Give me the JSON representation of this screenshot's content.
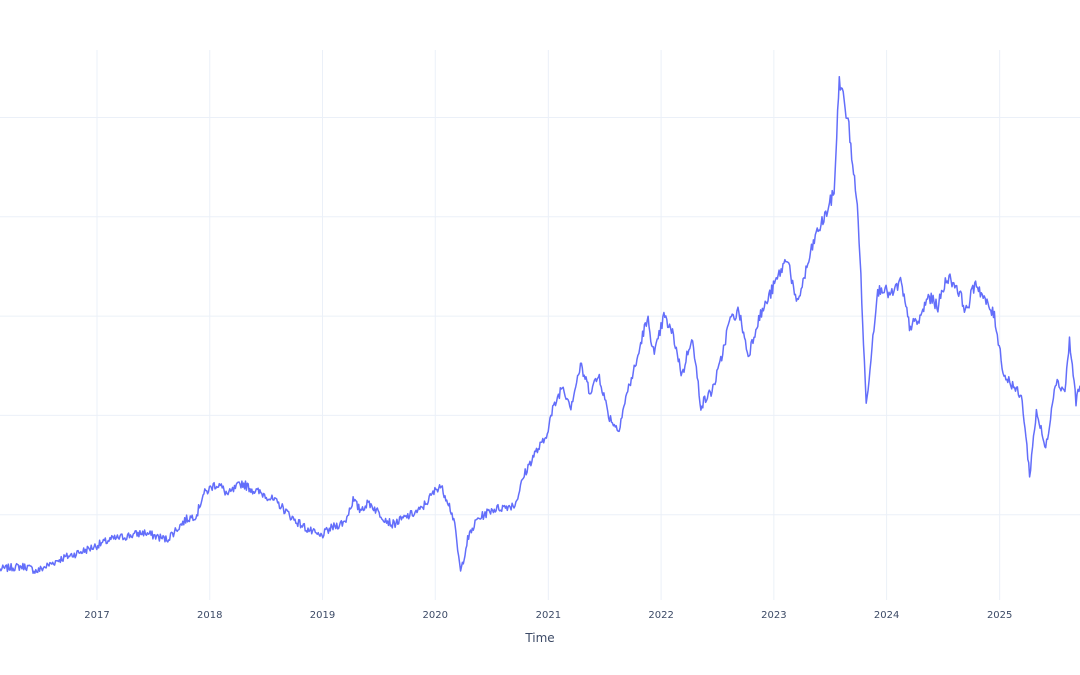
{
  "chart_data": {
    "type": "line",
    "xlabel": "Time",
    "ylabel": "",
    "title": "",
    "xlim": [
      "2016-02-22",
      "2025-09-18"
    ],
    "ylim": [
      0,
      6
    ],
    "x_ticks": [
      "2017",
      "2018",
      "2019",
      "2020",
      "2021",
      "2022",
      "2023",
      "2024",
      "2025"
    ],
    "x_tick_dates": [
      "2017-01-01",
      "2018-01-01",
      "2019-01-01",
      "2020-01-01",
      "2021-01-01",
      "2022-01-01",
      "2023-01-01",
      "2024-01-01",
      "2025-01-01"
    ],
    "y_gridlines": [
      1,
      2,
      3,
      4,
      5
    ],
    "grid": true,
    "legend": "none",
    "line_color": "#636efa",
    "series": [
      {
        "x": [
          "2016-02-22",
          "2016-04-01",
          "2016-05-15",
          "2016-06-20",
          "2016-09-01",
          "2016-12-01",
          "2017-02-15",
          "2017-04-01",
          "2017-06-01",
          "2017-08-15",
          "2017-10-15",
          "2017-11-20",
          "2017-12-10",
          "2018-01-15",
          "2018-02-01",
          "2018-03-01",
          "2018-04-15",
          "2018-05-20",
          "2018-06-30",
          "2018-08-15",
          "2018-10-01",
          "2018-11-15",
          "2018-12-24",
          "2019-02-01",
          "2019-03-15",
          "2019-04-10",
          "2019-05-01",
          "2019-06-01",
          "2019-07-15",
          "2019-08-15",
          "2019-10-01",
          "2019-11-15",
          "2020-01-15",
          "2020-02-10",
          "2020-03-01",
          "2020-03-23",
          "2020-04-15",
          "2020-05-15",
          "2020-07-01",
          "2020-08-15",
          "2020-09-15",
          "2020-10-15",
          "2020-11-15",
          "2020-12-20",
          "2021-01-15",
          "2021-02-15",
          "2021-03-15",
          "2021-04-15",
          "2021-05-15",
          "2021-06-15",
          "2021-07-15",
          "2021-08-15",
          "2021-09-15",
          "2021-10-15",
          "2021-11-05",
          "2021-11-20",
          "2021-12-10",
          "2022-01-10",
          "2022-02-10",
          "2022-03-10",
          "2022-04-10",
          "2022-05-10",
          "2022-06-15",
          "2022-07-10",
          "2022-08-10",
          "2022-09-10",
          "2022-10-10",
          "2022-11-10",
          "2022-12-10",
          "2023-01-15",
          "2023-02-15",
          "2023-03-15",
          "2023-04-15",
          "2023-05-15",
          "2023-06-15",
          "2023-07-15",
          "2023-08-01",
          "2023-09-01",
          "2023-10-01",
          "2023-10-27",
          "2023-11-30",
          "2023-12-15",
          "2024-01-15",
          "2024-02-15",
          "2024-03-15",
          "2024-04-15",
          "2024-05-15",
          "2024-06-15",
          "2024-07-15",
          "2024-08-15",
          "2024-09-15",
          "2024-10-15",
          "2024-11-15",
          "2024-12-15",
          "2025-01-15",
          "2025-02-15",
          "2025-03-15",
          "2025-04-08",
          "2025-04-30",
          "2025-05-30",
          "2025-06-30",
          "2025-07-31",
          "2025-08-15",
          "2025-09-05",
          "2025-09-18"
        ],
        "y": [
          0.45,
          0.47,
          0.48,
          0.43,
          0.55,
          0.65,
          0.75,
          0.78,
          0.82,
          0.75,
          0.95,
          1.0,
          1.2,
          1.3,
          1.3,
          1.2,
          1.32,
          1.25,
          1.2,
          1.1,
          0.95,
          0.85,
          0.78,
          0.87,
          0.93,
          1.15,
          1.05,
          1.12,
          0.98,
          0.9,
          0.98,
          1.05,
          1.3,
          1.15,
          0.95,
          0.42,
          0.75,
          0.95,
          1.05,
          1.08,
          1.1,
          1.4,
          1.6,
          1.75,
          2.05,
          2.3,
          2.1,
          2.5,
          2.25,
          2.4,
          2.0,
          1.85,
          2.25,
          2.55,
          2.85,
          2.95,
          2.6,
          3.0,
          2.8,
          2.4,
          2.8,
          2.1,
          2.25,
          2.5,
          2.95,
          3.05,
          2.6,
          2.95,
          3.15,
          3.4,
          3.6,
          3.1,
          3.45,
          3.8,
          4.0,
          4.25,
          5.4,
          4.9,
          4.0,
          2.1,
          3.2,
          3.3,
          3.2,
          3.35,
          2.9,
          2.95,
          3.2,
          3.1,
          3.4,
          3.3,
          3.05,
          3.35,
          3.15,
          3.0,
          2.4,
          2.3,
          2.15,
          1.4,
          2.05,
          1.65,
          2.35,
          2.25,
          2.75,
          2.15,
          2.3
        ]
      }
    ]
  }
}
